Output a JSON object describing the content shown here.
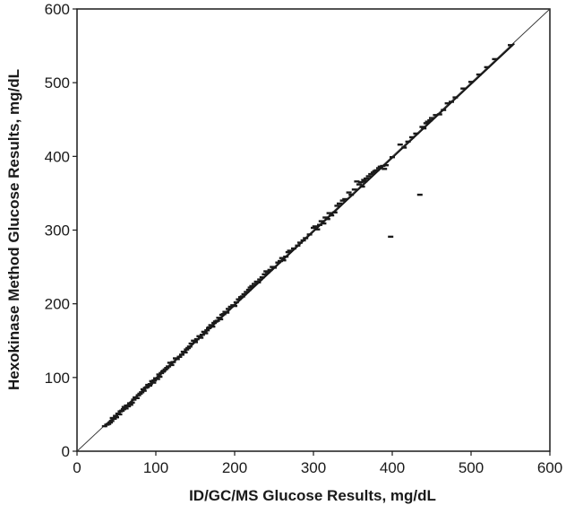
{
  "chart_data": {
    "type": "scatter",
    "title": "",
    "xlabel": "ID/GC/MS Glucose Results, mg/dL",
    "ylabel": "Hexokinase Method Glucose Results, mg/dL",
    "xlim": [
      0,
      600
    ],
    "ylim": [
      0,
      600
    ],
    "xticks": [
      "0",
      "100",
      "200",
      "300",
      "400",
      "500",
      "600"
    ],
    "yticks": [
      "0",
      "100",
      "200",
      "300",
      "400",
      "500",
      "600"
    ],
    "grid": false,
    "legend": "none",
    "reference_line": {
      "name": "",
      "x": [
        0,
        600
      ],
      "y": [
        0,
        600
      ]
    },
    "regression_line": {
      "x": [
        35,
        555
      ],
      "y": [
        33,
        553
      ]
    },
    "marker_color": "#1a1a1a",
    "series": [
      {
        "name": "",
        "points": [
          [
            35,
            34
          ],
          [
            38,
            36
          ],
          [
            40,
            37
          ],
          [
            42,
            39
          ],
          [
            44,
            41
          ],
          [
            45,
            45
          ],
          [
            47,
            44
          ],
          [
            49,
            48
          ],
          [
            50,
            46
          ],
          [
            52,
            51
          ],
          [
            54,
            50
          ],
          [
            55,
            54
          ],
          [
            57,
            55
          ],
          [
            59,
            57
          ],
          [
            60,
            60
          ],
          [
            62,
            58
          ],
          [
            63,
            62
          ],
          [
            65,
            61
          ],
          [
            67,
            65
          ],
          [
            68,
            63
          ],
          [
            70,
            66
          ],
          [
            72,
            70
          ],
          [
            74,
            73
          ],
          [
            76,
            72
          ],
          [
            78,
            76
          ],
          [
            80,
            78
          ],
          [
            82,
            80
          ],
          [
            84,
            84
          ],
          [
            85,
            82
          ],
          [
            87,
            86
          ],
          [
            89,
            87
          ],
          [
            90,
            90
          ],
          [
            92,
            89
          ],
          [
            93,
            91
          ],
          [
            95,
            95
          ],
          [
            97,
            93
          ],
          [
            98,
            96
          ],
          [
            100,
            99
          ],
          [
            102,
            98
          ],
          [
            104,
            104
          ],
          [
            105,
            101
          ],
          [
            107,
            106
          ],
          [
            109,
            108
          ],
          [
            110,
            109
          ],
          [
            112,
            111
          ],
          [
            114,
            113
          ],
          [
            116,
            115
          ],
          [
            118,
            120
          ],
          [
            120,
            117
          ],
          [
            122,
            121
          ],
          [
            125,
            126
          ],
          [
            127,
            125
          ],
          [
            130,
            128
          ],
          [
            133,
            131
          ],
          [
            135,
            135
          ],
          [
            137,
            134
          ],
          [
            139,
            138
          ],
          [
            141,
            140
          ],
          [
            143,
            142
          ],
          [
            145,
            146
          ],
          [
            148,
            150
          ],
          [
            150,
            148
          ],
          [
            152,
            152
          ],
          [
            155,
            156
          ],
          [
            157,
            154
          ],
          [
            159,
            158
          ],
          [
            161,
            162
          ],
          [
            163,
            160
          ],
          [
            165,
            164
          ],
          [
            167,
            167
          ],
          [
            168,
            168
          ],
          [
            170,
            171
          ],
          [
            172,
            169
          ],
          [
            174,
            174
          ],
          [
            176,
            176
          ],
          [
            178,
            177
          ],
          [
            180,
            181
          ],
          [
            182,
            179
          ],
          [
            184,
            185
          ],
          [
            186,
            186
          ],
          [
            188,
            189
          ],
          [
            190,
            188
          ],
          [
            192,
            193
          ],
          [
            195,
            196
          ],
          [
            198,
            198
          ],
          [
            200,
            197
          ],
          [
            202,
            202
          ],
          [
            205,
            206
          ],
          [
            208,
            209
          ],
          [
            210,
            210
          ],
          [
            212,
            213
          ],
          [
            215,
            216
          ],
          [
            218,
            219
          ],
          [
            220,
            222
          ],
          [
            222,
            224
          ],
          [
            225,
            227
          ],
          [
            228,
            230
          ],
          [
            230,
            229
          ],
          [
            232,
            233
          ],
          [
            235,
            236
          ],
          [
            238,
            240
          ],
          [
            240,
            244
          ],
          [
            242,
            243
          ],
          [
            245,
            246
          ],
          [
            248,
            250
          ],
          [
            250,
            249
          ],
          [
            255,
            256
          ],
          [
            258,
            258
          ],
          [
            260,
            262
          ],
          [
            262,
            259
          ],
          [
            265,
            264
          ],
          [
            268,
            270
          ],
          [
            270,
            272
          ],
          [
            275,
            275
          ],
          [
            280,
            279
          ],
          [
            283,
            283
          ],
          [
            287,
            286
          ],
          [
            290,
            289
          ],
          [
            295,
            294
          ],
          [
            300,
            303
          ],
          [
            302,
            305
          ],
          [
            305,
            301
          ],
          [
            308,
            307
          ],
          [
            310,
            312
          ],
          [
            313,
            309
          ],
          [
            315,
            317
          ],
          [
            318,
            315
          ],
          [
            320,
            323
          ],
          [
            323,
            320
          ],
          [
            327,
            324
          ],
          [
            330,
            333
          ],
          [
            333,
            336
          ],
          [
            337,
            340
          ],
          [
            340,
            342
          ],
          [
            345,
            351
          ],
          [
            348,
            348
          ],
          [
            352,
            355
          ],
          [
            355,
            366
          ],
          [
            358,
            362
          ],
          [
            360,
            365
          ],
          [
            362,
            359
          ],
          [
            364,
            368
          ],
          [
            365,
            366
          ],
          [
            367,
            370
          ],
          [
            370,
            373
          ],
          [
            373,
            376
          ],
          [
            376,
            378
          ],
          [
            378,
            380
          ],
          [
            380,
            381
          ],
          [
            383,
            384
          ],
          [
            385,
            386
          ],
          [
            388,
            387
          ],
          [
            390,
            383
          ],
          [
            392,
            388
          ],
          [
            398,
            291
          ],
          [
            400,
            399
          ],
          [
            410,
            416
          ],
          [
            415,
            412
          ],
          [
            420,
            420
          ],
          [
            425,
            426
          ],
          [
            430,
            431
          ],
          [
            435,
            348
          ],
          [
            438,
            440
          ],
          [
            440,
            438
          ],
          [
            443,
            445
          ],
          [
            445,
            447
          ],
          [
            448,
            449
          ],
          [
            450,
            452
          ],
          [
            455,
            456
          ],
          [
            460,
            457
          ],
          [
            465,
            463
          ],
          [
            470,
            472
          ],
          [
            475,
            474
          ],
          [
            480,
            480
          ],
          [
            490,
            492
          ],
          [
            500,
            501
          ],
          [
            510,
            511
          ],
          [
            520,
            521
          ],
          [
            530,
            532
          ],
          [
            550,
            551
          ]
        ]
      }
    ]
  }
}
